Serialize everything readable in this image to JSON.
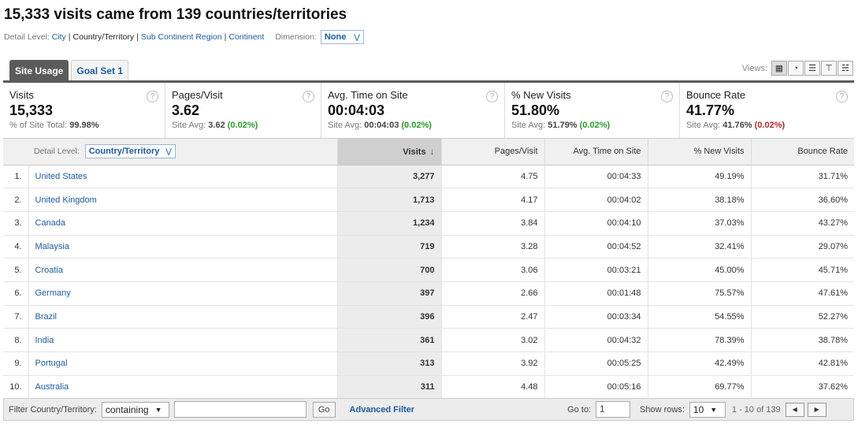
{
  "title": "15,333 visits came from 139 countries/territories",
  "detail_level": {
    "label": "Detail Level:",
    "options": [
      "City",
      "Country/Territory",
      "Sub Continent Region",
      "Continent"
    ],
    "current": "Country/Territory"
  },
  "dimension": {
    "label": "Dimension:",
    "value": "None"
  },
  "tabs": [
    {
      "label": "Site Usage",
      "active": true
    },
    {
      "label": "Goal Set 1",
      "active": false
    }
  ],
  "views_label": "Views:",
  "views_icons": [
    "table-icon",
    "pie-icon",
    "performance-icon",
    "comparison-icon",
    "pivot-icon"
  ],
  "scorecard": [
    {
      "label": "Visits",
      "value": "15,333",
      "sub_prefix": "% of Site Total: ",
      "sub_value": "99.98%",
      "sub_delta": ""
    },
    {
      "label": "Pages/Visit",
      "value": "3.62",
      "sub_prefix": "Site Avg: ",
      "sub_value": "3.62",
      "sub_delta": "(0.02%)"
    },
    {
      "label": "Avg. Time on Site",
      "value": "00:04:03",
      "sub_prefix": "Site Avg: ",
      "sub_value": "00:04:03",
      "sub_delta": "(0.02%)"
    },
    {
      "label": "% New Visits",
      "value": "51.80%",
      "sub_prefix": "Site Avg: ",
      "sub_value": "51.79%",
      "sub_delta": "(0.02%)"
    },
    {
      "label": "Bounce Rate",
      "value": "41.77%",
      "sub_prefix": "Site Avg: ",
      "sub_value": "41.76%",
      "sub_delta": "(0.02%)"
    }
  ],
  "table": {
    "detail_label": "Detail Level:",
    "detail_value": "Country/Territory",
    "headers": [
      "Visits",
      "Pages/Visit",
      "Avg. Time on Site",
      "% New Visits",
      "Bounce Rate"
    ],
    "rows": [
      {
        "num": "1.",
        "country": "United States",
        "visits": "3,277",
        "pages": "4.75",
        "time": "00:04:33",
        "new": "49.19%",
        "bounce": "31.71%"
      },
      {
        "num": "2.",
        "country": "United Kingdom",
        "visits": "1,713",
        "pages": "4.17",
        "time": "00:04:02",
        "new": "38.18%",
        "bounce": "36.60%"
      },
      {
        "num": "3.",
        "country": "Canada",
        "visits": "1,234",
        "pages": "3.84",
        "time": "00:04:10",
        "new": "37.03%",
        "bounce": "43.27%"
      },
      {
        "num": "4.",
        "country": "Malaysia",
        "visits": "719",
        "pages": "3.28",
        "time": "00:04:52",
        "new": "32.41%",
        "bounce": "29.07%"
      },
      {
        "num": "5.",
        "country": "Croatia",
        "visits": "700",
        "pages": "3.06",
        "time": "00:03:21",
        "new": "45.00%",
        "bounce": "45.71%"
      },
      {
        "num": "6.",
        "country": "Germany",
        "visits": "397",
        "pages": "2.66",
        "time": "00:01:48",
        "new": "75.57%",
        "bounce": "47.61%"
      },
      {
        "num": "7.",
        "country": "Brazil",
        "visits": "396",
        "pages": "2.47",
        "time": "00:03:34",
        "new": "54.55%",
        "bounce": "52.27%"
      },
      {
        "num": "8.",
        "country": "India",
        "visits": "361",
        "pages": "3.02",
        "time": "00:04:32",
        "new": "78.39%",
        "bounce": "38.78%"
      },
      {
        "num": "9.",
        "country": "Portugal",
        "visits": "313",
        "pages": "3.92",
        "time": "00:05:25",
        "new": "42.49%",
        "bounce": "42.81%"
      },
      {
        "num": "10.",
        "country": "Australia",
        "visits": "311",
        "pages": "4.48",
        "time": "00:05:16",
        "new": "69.77%",
        "bounce": "37.62%"
      }
    ]
  },
  "footer": {
    "filter_label": "Filter Country/Territory:",
    "filter_mode": "containing",
    "filter_value": "",
    "go_label": "Go",
    "advanced_label": "Advanced Filter",
    "goto_label": "Go to:",
    "goto_value": "1",
    "show_rows_label": "Show rows:",
    "show_rows_value": "10",
    "range": "1 - 10 of 139"
  }
}
